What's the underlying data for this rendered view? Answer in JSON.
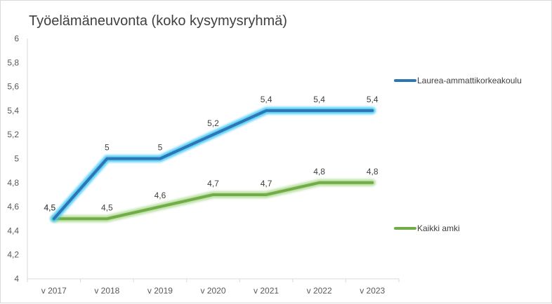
{
  "chart_data": {
    "type": "line",
    "title": "Työelämäneuvonta (koko kysymysryhmä)",
    "categories": [
      "v 2017",
      "v 2018",
      "v 2019",
      "v 2020",
      "v 2021",
      "v 2022",
      "v 2023"
    ],
    "y_ticks": [
      "4",
      "4,2",
      "4,4",
      "4,6",
      "4,8",
      "5",
      "5,2",
      "5,4",
      "5,6",
      "5,8",
      "6"
    ],
    "ylim": [
      4,
      6
    ],
    "grid": false,
    "legend_position": "right",
    "series": [
      {
        "name": "Laurea-ammattikorkeakoulu",
        "color": "#2e75b6",
        "glow": "#3fc8f4",
        "values": [
          4.5,
          5.0,
          5.0,
          5.2,
          5.4,
          5.4,
          5.4
        ],
        "labels": [
          "4,5",
          "5",
          "5",
          "5,2",
          "5,4",
          "5,4",
          "5,4"
        ]
      },
      {
        "name": "Kaikki amki",
        "color": "#70ad47",
        "glow": "#b4dc9a",
        "values": [
          4.5,
          4.5,
          4.6,
          4.7,
          4.7,
          4.8,
          4.8
        ],
        "labels": [
          "4,5",
          "4,5",
          "4,6",
          "4,7",
          "4,7",
          "4,8",
          "4,8"
        ]
      }
    ]
  }
}
